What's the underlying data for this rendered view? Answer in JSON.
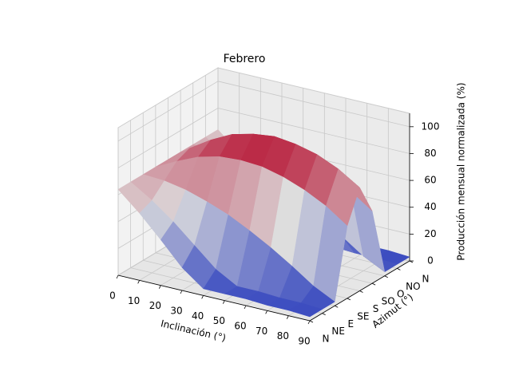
{
  "chart_data": {
    "type": "surface",
    "title": "Febrero",
    "x_label": "Inclinación (°)",
    "y_label": "Azimut (°)",
    "z_label": "Producción mensual normalizada (%)",
    "x": [
      0,
      10,
      20,
      30,
      40,
      50,
      60,
      70,
      80,
      90
    ],
    "y": [
      "N",
      "NE",
      "E",
      "SE",
      "S",
      "SO",
      "O",
      "NO",
      "N"
    ],
    "z": [
      [
        64,
        50,
        34,
        17,
        5,
        5,
        5,
        4,
        4,
        3
      ],
      [
        64,
        54,
        42,
        28,
        14,
        5,
        5,
        4,
        4,
        3
      ],
      [
        64,
        63,
        60,
        55,
        49,
        41,
        32,
        22,
        11,
        3
      ],
      [
        64,
        72,
        79,
        83,
        84,
        83,
        79,
        73,
        65,
        54
      ],
      [
        64,
        76,
        86,
        94,
        98,
        100,
        98,
        94,
        87,
        77
      ],
      [
        64,
        72,
        79,
        83,
        84,
        83,
        79,
        73,
        65,
        54
      ],
      [
        64,
        63,
        60,
        55,
        49,
        41,
        32,
        22,
        11,
        3
      ],
      [
        64,
        54,
        42,
        28,
        14,
        5,
        5,
        4,
        4,
        3
      ],
      [
        64,
        50,
        34,
        17,
        5,
        5,
        5,
        4,
        4,
        3
      ]
    ],
    "xlim": [
      0,
      90
    ],
    "xticks": [
      0,
      10,
      20,
      30,
      40,
      50,
      60,
      70,
      80,
      90
    ],
    "zlim": [
      0,
      110
    ],
    "zticks": [
      0,
      20,
      40,
      60,
      80,
      100
    ],
    "colormap": [
      "#3b4cc0",
      "#dddddd",
      "#b40426"
    ],
    "grid": true
  }
}
